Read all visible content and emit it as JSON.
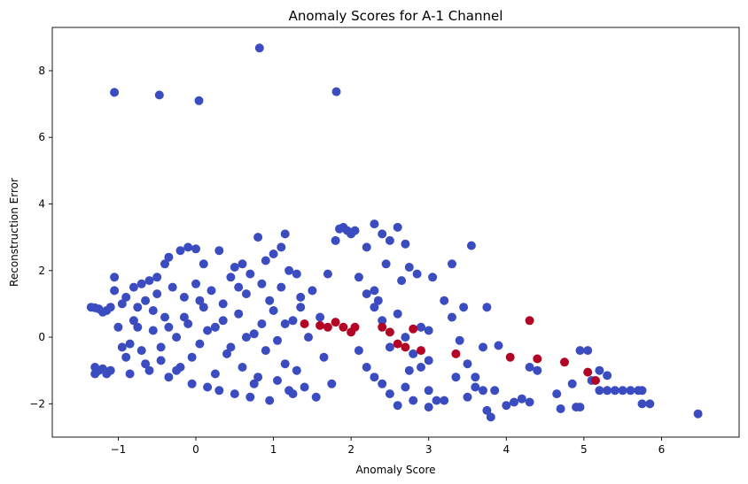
{
  "chart_data": {
    "type": "scatter",
    "title": "Anomaly Scores for A-1 Channel",
    "xlabel": "Anomaly Score",
    "ylabel": "Reconstruction Error",
    "xlim": [
      -1.85,
      7.0
    ],
    "ylim": [
      -3.0,
      9.3
    ],
    "xticks": [
      -1,
      0,
      1,
      2,
      3,
      4,
      5,
      6
    ],
    "yticks": [
      -2,
      0,
      2,
      4,
      6,
      8
    ],
    "xtick_labels": [
      "−1",
      "0",
      "1",
      "2",
      "3",
      "4",
      "5",
      "6"
    ],
    "ytick_labels": [
      "−2",
      "0",
      "2",
      "4",
      "6",
      "8"
    ],
    "grid": false,
    "legend": "none",
    "colors": {
      "normal": "#3b4cc0",
      "anomaly": "#b40426",
      "frame": "#000000"
    },
    "series": [
      {
        "color_key": "normal",
        "points": [
          [
            -1.05,
            7.35
          ],
          [
            -0.47,
            7.27
          ],
          [
            0.04,
            7.1
          ],
          [
            0.82,
            8.68
          ],
          [
            1.81,
            7.37
          ],
          [
            -1.35,
            0.9
          ],
          [
            -1.3,
            0.88
          ],
          [
            -1.25,
            0.85
          ],
          [
            -1.2,
            0.75
          ],
          [
            -1.15,
            0.8
          ],
          [
            -1.1,
            0.9
          ],
          [
            -1.3,
            -0.9
          ],
          [
            -1.3,
            -1.1
          ],
          [
            -1.25,
            -1.0
          ],
          [
            -1.2,
            -0.95
          ],
          [
            -1.15,
            -1.1
          ],
          [
            -1.1,
            -1.0
          ],
          [
            -1.05,
            1.8
          ],
          [
            -1.05,
            1.4
          ],
          [
            -0.9,
            1.2
          ],
          [
            -0.8,
            1.5
          ],
          [
            -0.7,
            1.6
          ],
          [
            -0.6,
            1.7
          ],
          [
            -0.5,
            1.8
          ],
          [
            -0.4,
            2.2
          ],
          [
            -0.35,
            2.4
          ],
          [
            -0.2,
            2.6
          ],
          [
            -0.1,
            2.7
          ],
          [
            0.0,
            2.65
          ],
          [
            0.1,
            2.2
          ],
          [
            0.3,
            2.6
          ],
          [
            0.5,
            2.1
          ],
          [
            0.6,
            2.2
          ],
          [
            0.7,
            1.9
          ],
          [
            0.8,
            3.0
          ],
          [
            0.9,
            2.3
          ],
          [
            1.0,
            2.5
          ],
          [
            1.1,
            2.7
          ],
          [
            1.15,
            3.1
          ],
          [
            1.2,
            2.0
          ],
          [
            1.3,
            1.9
          ],
          [
            -1.0,
            0.3
          ],
          [
            -0.95,
            -0.3
          ],
          [
            -0.9,
            -0.6
          ],
          [
            -0.85,
            -1.1
          ],
          [
            -0.8,
            0.5
          ],
          [
            -0.75,
            0.9
          ],
          [
            -0.7,
            -0.4
          ],
          [
            -0.65,
            1.1
          ],
          [
            -0.6,
            -1.0
          ],
          [
            -0.55,
            0.2
          ],
          [
            -0.5,
            1.3
          ],
          [
            -0.45,
            -0.7
          ],
          [
            -0.4,
            0.6
          ],
          [
            -0.35,
            -1.2
          ],
          [
            -0.3,
            1.5
          ],
          [
            -0.25,
            0.0
          ],
          [
            -0.2,
            -0.9
          ],
          [
            -0.15,
            1.2
          ],
          [
            -0.1,
            0.4
          ],
          [
            -0.05,
            -1.4
          ],
          [
            0.0,
            1.6
          ],
          [
            0.05,
            -0.2
          ],
          [
            0.1,
            0.9
          ],
          [
            0.15,
            -1.5
          ],
          [
            0.2,
            1.4
          ],
          [
            0.25,
            0.3
          ],
          [
            0.3,
            -1.6
          ],
          [
            0.35,
            1.0
          ],
          [
            0.4,
            -0.5
          ],
          [
            0.45,
            1.8
          ],
          [
            0.5,
            -1.7
          ],
          [
            0.55,
            0.7
          ],
          [
            0.6,
            -0.9
          ],
          [
            0.65,
            1.3
          ],
          [
            0.7,
            -1.8
          ],
          [
            0.75,
            0.1
          ],
          [
            0.8,
            -1.2
          ],
          [
            0.85,
            1.6
          ],
          [
            0.9,
            -0.4
          ],
          [
            0.95,
            -1.9
          ],
          [
            1.0,
            0.8
          ],
          [
            1.05,
            -1.3
          ],
          [
            1.1,
            1.5
          ],
          [
            1.15,
            -0.8
          ],
          [
            1.2,
            -1.6
          ],
          [
            1.25,
            0.5
          ],
          [
            1.3,
            -1.0
          ],
          [
            1.35,
            1.2
          ],
          [
            1.4,
            -1.5
          ],
          [
            1.45,
            0.0
          ],
          [
            1.5,
            1.4
          ],
          [
            1.55,
            -1.8
          ],
          [
            1.6,
            0.6
          ],
          [
            1.65,
            -0.6
          ],
          [
            1.7,
            1.9
          ],
          [
            1.75,
            -1.4
          ],
          [
            1.8,
            2.9
          ],
          [
            1.85,
            3.25
          ],
          [
            1.9,
            3.3
          ],
          [
            1.95,
            3.2
          ],
          [
            2.0,
            3.1
          ],
          [
            2.05,
            3.2
          ],
          [
            2.2,
            2.7
          ],
          [
            2.3,
            3.4
          ],
          [
            2.4,
            3.1
          ],
          [
            2.5,
            2.9
          ],
          [
            2.6,
            3.3
          ],
          [
            2.3,
            1.4
          ],
          [
            2.35,
            1.1
          ],
          [
            2.45,
            2.2
          ],
          [
            2.7,
            2.8
          ],
          [
            2.75,
            2.1
          ],
          [
            2.85,
            1.9
          ],
          [
            2.65,
            1.7
          ],
          [
            2.1,
            1.8
          ],
          [
            2.2,
            1.3
          ],
          [
            2.3,
            0.9
          ],
          [
            2.4,
            0.5
          ],
          [
            2.5,
            -0.3
          ],
          [
            2.6,
            0.7
          ],
          [
            2.7,
            0.0
          ],
          [
            2.8,
            -0.5
          ],
          [
            2.9,
            0.3
          ],
          [
            3.0,
            -0.7
          ],
          [
            2.1,
            -0.4
          ],
          [
            2.2,
            -0.9
          ],
          [
            2.3,
            -1.2
          ],
          [
            2.4,
            -1.4
          ],
          [
            2.5,
            -1.7
          ],
          [
            2.6,
            -2.05
          ],
          [
            2.7,
            -1.5
          ],
          [
            2.75,
            -1.0
          ],
          [
            2.8,
            -1.9
          ],
          [
            2.9,
            -0.9
          ],
          [
            3.0,
            -1.6
          ],
          [
            3.1,
            -1.9
          ],
          [
            3.0,
            0.2
          ],
          [
            3.05,
            1.8
          ],
          [
            3.2,
            1.1
          ],
          [
            3.3,
            0.6
          ],
          [
            3.4,
            -0.1
          ],
          [
            3.45,
            0.9
          ],
          [
            3.5,
            -0.8
          ],
          [
            3.6,
            -1.5
          ],
          [
            3.55,
            2.75
          ],
          [
            3.7,
            -0.3
          ],
          [
            3.75,
            0.9
          ],
          [
            3.3,
            2.2
          ],
          [
            3.35,
            -1.2
          ],
          [
            3.5,
            -1.8
          ],
          [
            3.6,
            -1.2
          ],
          [
            3.7,
            -1.6
          ],
          [
            3.75,
            -2.2
          ],
          [
            3.8,
            -2.4
          ],
          [
            3.2,
            -1.9
          ],
          [
            3.0,
            -2.1
          ],
          [
            3.9,
            -0.25
          ],
          [
            3.85,
            -1.6
          ],
          [
            4.0,
            -2.05
          ],
          [
            4.1,
            -1.95
          ],
          [
            4.2,
            -1.85
          ],
          [
            4.3,
            -1.95
          ],
          [
            4.4,
            -1.0
          ],
          [
            4.3,
            -0.9
          ],
          [
            4.65,
            -1.7
          ],
          [
            4.7,
            -2.15
          ],
          [
            4.85,
            -1.4
          ],
          [
            4.9,
            -2.1
          ],
          [
            4.95,
            -2.1
          ],
          [
            4.95,
            -0.4
          ],
          [
            5.05,
            -0.4
          ],
          [
            5.1,
            -1.3
          ],
          [
            5.2,
            -1.6
          ],
          [
            5.3,
            -1.6
          ],
          [
            5.4,
            -1.6
          ],
          [
            5.5,
            -1.6
          ],
          [
            5.6,
            -1.6
          ],
          [
            5.7,
            -1.6
          ],
          [
            5.75,
            -1.6
          ],
          [
            5.75,
            -2.0
          ],
          [
            5.85,
            -2.0
          ],
          [
            5.2,
            -1.0
          ],
          [
            5.3,
            -1.15
          ],
          [
            6.47,
            -2.3
          ],
          [
            -0.95,
            1.0
          ],
          [
            -0.85,
            -0.2
          ],
          [
            -0.75,
            0.3
          ],
          [
            -0.65,
            -0.8
          ],
          [
            -0.55,
            0.8
          ],
          [
            -0.45,
            -0.3
          ],
          [
            -0.35,
            0.3
          ],
          [
            -0.25,
            -1.0
          ],
          [
            -0.15,
            0.6
          ],
          [
            -0.05,
            -0.6
          ],
          [
            0.05,
            1.1
          ],
          [
            0.15,
            0.2
          ],
          [
            0.25,
            -1.1
          ],
          [
            0.35,
            0.5
          ],
          [
            0.45,
            -0.3
          ],
          [
            0.55,
            1.5
          ],
          [
            0.65,
            0.0
          ],
          [
            0.75,
            -1.4
          ],
          [
            0.85,
            0.4
          ],
          [
            0.95,
            1.1
          ],
          [
            1.05,
            -0.1
          ],
          [
            1.15,
            0.4
          ],
          [
            1.25,
            -1.7
          ],
          [
            1.35,
            0.9
          ]
        ]
      },
      {
        "color_key": "anomaly",
        "points": [
          [
            1.4,
            0.4
          ],
          [
            1.6,
            0.35
          ],
          [
            1.7,
            0.3
          ],
          [
            1.8,
            0.45
          ],
          [
            1.9,
            0.3
          ],
          [
            2.0,
            0.15
          ],
          [
            2.05,
            0.3
          ],
          [
            2.4,
            0.3
          ],
          [
            2.5,
            0.15
          ],
          [
            2.6,
            -0.2
          ],
          [
            2.7,
            -0.3
          ],
          [
            2.8,
            0.25
          ],
          [
            2.9,
            -0.4
          ],
          [
            3.35,
            -0.5
          ],
          [
            4.05,
            -0.6
          ],
          [
            4.3,
            0.5
          ],
          [
            4.4,
            -0.65
          ],
          [
            4.75,
            -0.75
          ],
          [
            5.05,
            -1.05
          ],
          [
            5.15,
            -1.3
          ]
        ]
      }
    ]
  }
}
